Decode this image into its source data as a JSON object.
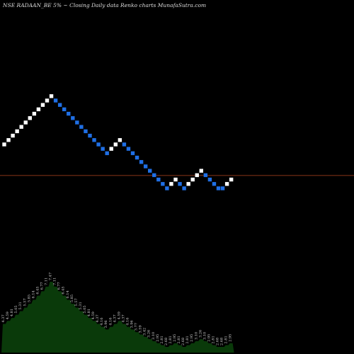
{
  "chart_data": {
    "type": "renko",
    "title": "NSE RADAAN_BE 5% ~  Closing Daily data  Renko  charts MunafaSutra.com",
    "colors": {
      "background": "#000000",
      "up_brick": "#ffffff",
      "down_brick": "#1f6fe5",
      "reference_line": "#b5461f",
      "volume_area": "#0a3a0a"
    },
    "bricks": [
      {
        "dir": "up",
        "level": 0
      },
      {
        "dir": "up",
        "level": 1
      },
      {
        "dir": "up",
        "level": 2
      },
      {
        "dir": "up",
        "level": 3
      },
      {
        "dir": "up",
        "level": 4
      },
      {
        "dir": "up",
        "level": 5
      },
      {
        "dir": "up",
        "level": 6
      },
      {
        "dir": "up",
        "level": 7
      },
      {
        "dir": "up",
        "level": 8
      },
      {
        "dir": "up",
        "level": 9
      },
      {
        "dir": "up",
        "level": 10
      },
      {
        "dir": "up",
        "level": 11
      },
      {
        "dir": "down",
        "level": 10
      },
      {
        "dir": "down",
        "level": 9
      },
      {
        "dir": "down",
        "level": 8
      },
      {
        "dir": "down",
        "level": 7
      },
      {
        "dir": "down",
        "level": 6
      },
      {
        "dir": "down",
        "level": 5
      },
      {
        "dir": "down",
        "level": 4
      },
      {
        "dir": "down",
        "level": 3
      },
      {
        "dir": "down",
        "level": 2
      },
      {
        "dir": "down",
        "level": 1
      },
      {
        "dir": "down",
        "level": 0
      },
      {
        "dir": "down",
        "level": -1
      },
      {
        "dir": "down",
        "level": -2
      },
      {
        "dir": "up",
        "level": -1
      },
      {
        "dir": "up",
        "level": 0
      },
      {
        "dir": "up",
        "level": 1
      },
      {
        "dir": "down",
        "level": 0
      },
      {
        "dir": "down",
        "level": -1
      },
      {
        "dir": "down",
        "level": -2
      },
      {
        "dir": "down",
        "level": -3
      },
      {
        "dir": "down",
        "level": -4
      },
      {
        "dir": "down",
        "level": -5
      },
      {
        "dir": "down",
        "level": -6
      },
      {
        "dir": "down",
        "level": -7
      },
      {
        "dir": "down",
        "level": -8
      },
      {
        "dir": "down",
        "level": -9
      },
      {
        "dir": "down",
        "level": -10
      },
      {
        "dir": "up",
        "level": -9
      },
      {
        "dir": "up",
        "level": -8
      },
      {
        "dir": "down",
        "level": -9
      },
      {
        "dir": "down",
        "level": -10
      },
      {
        "dir": "up",
        "level": -9
      },
      {
        "dir": "up",
        "level": -8
      },
      {
        "dir": "up",
        "level": -7
      },
      {
        "dir": "up",
        "level": -6
      },
      {
        "dir": "down",
        "level": -7
      },
      {
        "dir": "down",
        "level": -8
      },
      {
        "dir": "down",
        "level": -9
      },
      {
        "dir": "down",
        "level": -10
      },
      {
        "dir": "down",
        "level": -10
      },
      {
        "dir": "up",
        "level": -9
      },
      {
        "dir": "up",
        "level": -8
      }
    ],
    "reference_level": -7,
    "volume_labels": [
      "4.37",
      "4.59",
      "4.81",
      "5.05",
      "5.31",
      "5.57",
      "5.85",
      "6.14",
      "6.45",
      "6.77",
      "7.11",
      "7.47",
      "7.11",
      "6.77",
      "6.45",
      "6.14",
      "5.85",
      "5.57",
      "5.31",
      "5.05",
      "4.81",
      "4.59",
      "4.37",
      "4.16",
      "3.96",
      "4.16",
      "4.37",
      "4.59",
      "4.37",
      "4.16",
      "3.96",
      "3.77",
      "3.59",
      "3.42",
      "3.26",
      "3.10",
      "2.95",
      "2.81",
      "2.68",
      "2.81",
      "2.95",
      "2.81",
      "2.68",
      "2.81",
      "2.95",
      "3.10",
      "3.26",
      "3.10",
      "2.95",
      "2.81",
      "2.68",
      "2.68",
      "2.81",
      "2.95"
    ]
  }
}
